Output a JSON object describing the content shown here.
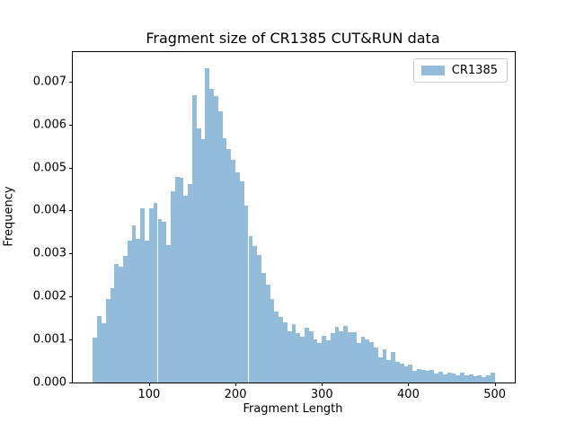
{
  "figure": {
    "background": "#ffffff",
    "text_color": "#000000",
    "spine_color": "#000000"
  },
  "chart_data": {
    "type": "bar",
    "subtype": "histogram",
    "title": "Fragment size of CR1385 CUT&RUN data",
    "xlabel": "Fragment Length",
    "ylabel": "Frequency",
    "legend": {
      "entries": [
        "CR1385"
      ],
      "position": "upper right"
    },
    "bar_color": "#92bcd9",
    "grid": false,
    "bin_start": 35,
    "bin_width": 5,
    "xlim": [
      11.75,
      523.25
    ],
    "ylim": [
      0,
      0.0076855
    ],
    "x_tick_labels": [
      "100",
      "200",
      "300",
      "400",
      "500"
    ],
    "x_tick_values": [
      100,
      200,
      300,
      400,
      500
    ],
    "y_tick_labels": [
      "0.000",
      "0.001",
      "0.002",
      "0.003",
      "0.004",
      "0.005",
      "0.006",
      "0.007"
    ],
    "y_tick_values": [
      0.0,
      0.001,
      0.002,
      0.003,
      0.004,
      0.005,
      0.006,
      0.007
    ],
    "series": [
      {
        "name": "CR1385",
        "bin_left_edges": [
          35,
          40,
          45,
          50,
          55,
          60,
          65,
          70,
          75,
          80,
          85,
          90,
          95,
          100,
          105,
          110,
          115,
          120,
          125,
          130,
          135,
          140,
          145,
          150,
          155,
          160,
          165,
          170,
          175,
          180,
          185,
          190,
          195,
          200,
          205,
          210,
          215,
          220,
          225,
          230,
          235,
          240,
          245,
          250,
          255,
          260,
          265,
          270,
          275,
          280,
          285,
          290,
          295,
          300,
          305,
          310,
          315,
          320,
          325,
          330,
          335,
          340,
          345,
          350,
          355,
          360,
          365,
          370,
          375,
          380,
          385,
          390,
          395,
          400,
          405,
          410,
          415,
          420,
          425,
          430,
          435,
          440,
          445,
          450,
          455,
          460,
          465,
          470,
          475,
          480,
          485,
          490,
          495
        ],
        "frequencies": [
          0.00105,
          0.00155,
          0.00138,
          0.00195,
          0.0022,
          0.00275,
          0.0027,
          0.00295,
          0.0033,
          0.00365,
          0.00335,
          0.00405,
          0.0033,
          0.00405,
          0.00418,
          0.0038,
          0.00373,
          0.0032,
          0.00445,
          0.00479,
          0.00477,
          0.00435,
          0.00461,
          0.00668,
          0.00592,
          0.00566,
          0.00731,
          0.00684,
          0.00667,
          0.0063,
          0.00568,
          0.00543,
          0.00519,
          0.00488,
          0.00467,
          0.00411,
          0.00341,
          0.00317,
          0.00297,
          0.00254,
          0.00228,
          0.00195,
          0.00166,
          0.00153,
          0.00139,
          0.0012,
          0.00136,
          0.00114,
          0.00106,
          0.00127,
          0.0012,
          0.00101,
          0.00091,
          0.00109,
          0.00098,
          0.00115,
          0.00129,
          0.0012,
          0.00131,
          0.00116,
          0.00116,
          0.00091,
          0.00106,
          0.00101,
          0.00093,
          0.00081,
          0.00059,
          0.00077,
          0.00052,
          0.0007,
          0.00049,
          0.00044,
          0.00038,
          0.00042,
          0.00028,
          0.00031,
          0.0003,
          0.00027,
          0.00029,
          0.00021,
          0.00026,
          0.00019,
          0.00024,
          0.00021,
          0.00016,
          0.00022,
          0.00016,
          0.00019,
          0.00014,
          0.00017,
          0.00013,
          0.00016,
          0.00022
        ]
      }
    ]
  }
}
